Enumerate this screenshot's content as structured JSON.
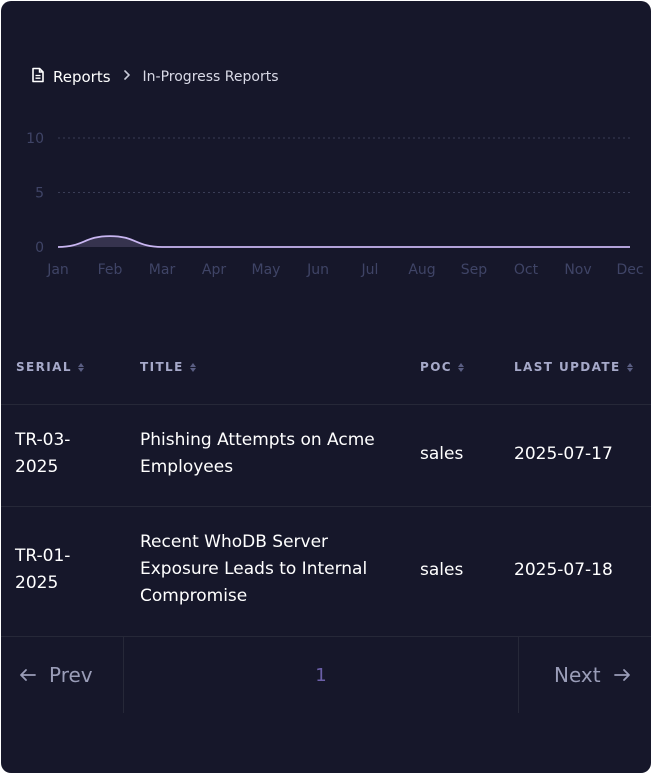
{
  "breadcrumb": {
    "root_icon": "document-icon",
    "root_label": "Reports",
    "separator_icon": "chevron-right-icon",
    "current_label": "In-Progress Reports"
  },
  "chart_data": {
    "type": "area",
    "x": [
      "Jan",
      "Feb",
      "Mar",
      "Apr",
      "May",
      "Jun",
      "Jul",
      "Aug",
      "Sep",
      "Oct",
      "Nov",
      "Dec"
    ],
    "series": [
      {
        "values": [
          0,
          1,
          0,
          0,
          0,
          0,
          0,
          0,
          0,
          0,
          0,
          0
        ],
        "color": "#c9b6f2"
      }
    ],
    "ylim": [
      0,
      10
    ],
    "yticks": [
      "0",
      "5",
      "10"
    ],
    "grid": true,
    "tick_color": "#3f4466"
  },
  "table": {
    "columns": [
      {
        "label": "SERIAL"
      },
      {
        "label": "TITLE"
      },
      {
        "label": "POC"
      },
      {
        "label": "LAST UPDATE"
      }
    ],
    "rows": [
      {
        "serial": [
          "TR-03-",
          "2025"
        ],
        "title": [
          "Phishing Attempts on Acme",
          "Employees"
        ],
        "poc": "sales",
        "last_update": "2025-07-17"
      },
      {
        "serial": [
          "TR-01-",
          "2025"
        ],
        "title": [
          "Recent WhoDB Server",
          "Exposure Leads to Internal",
          "Compromise"
        ],
        "poc": "sales",
        "last_update": "2025-07-18"
      }
    ]
  },
  "pagination": {
    "prev_label": "Prev",
    "next_label": "Next",
    "current_page": "1"
  }
}
